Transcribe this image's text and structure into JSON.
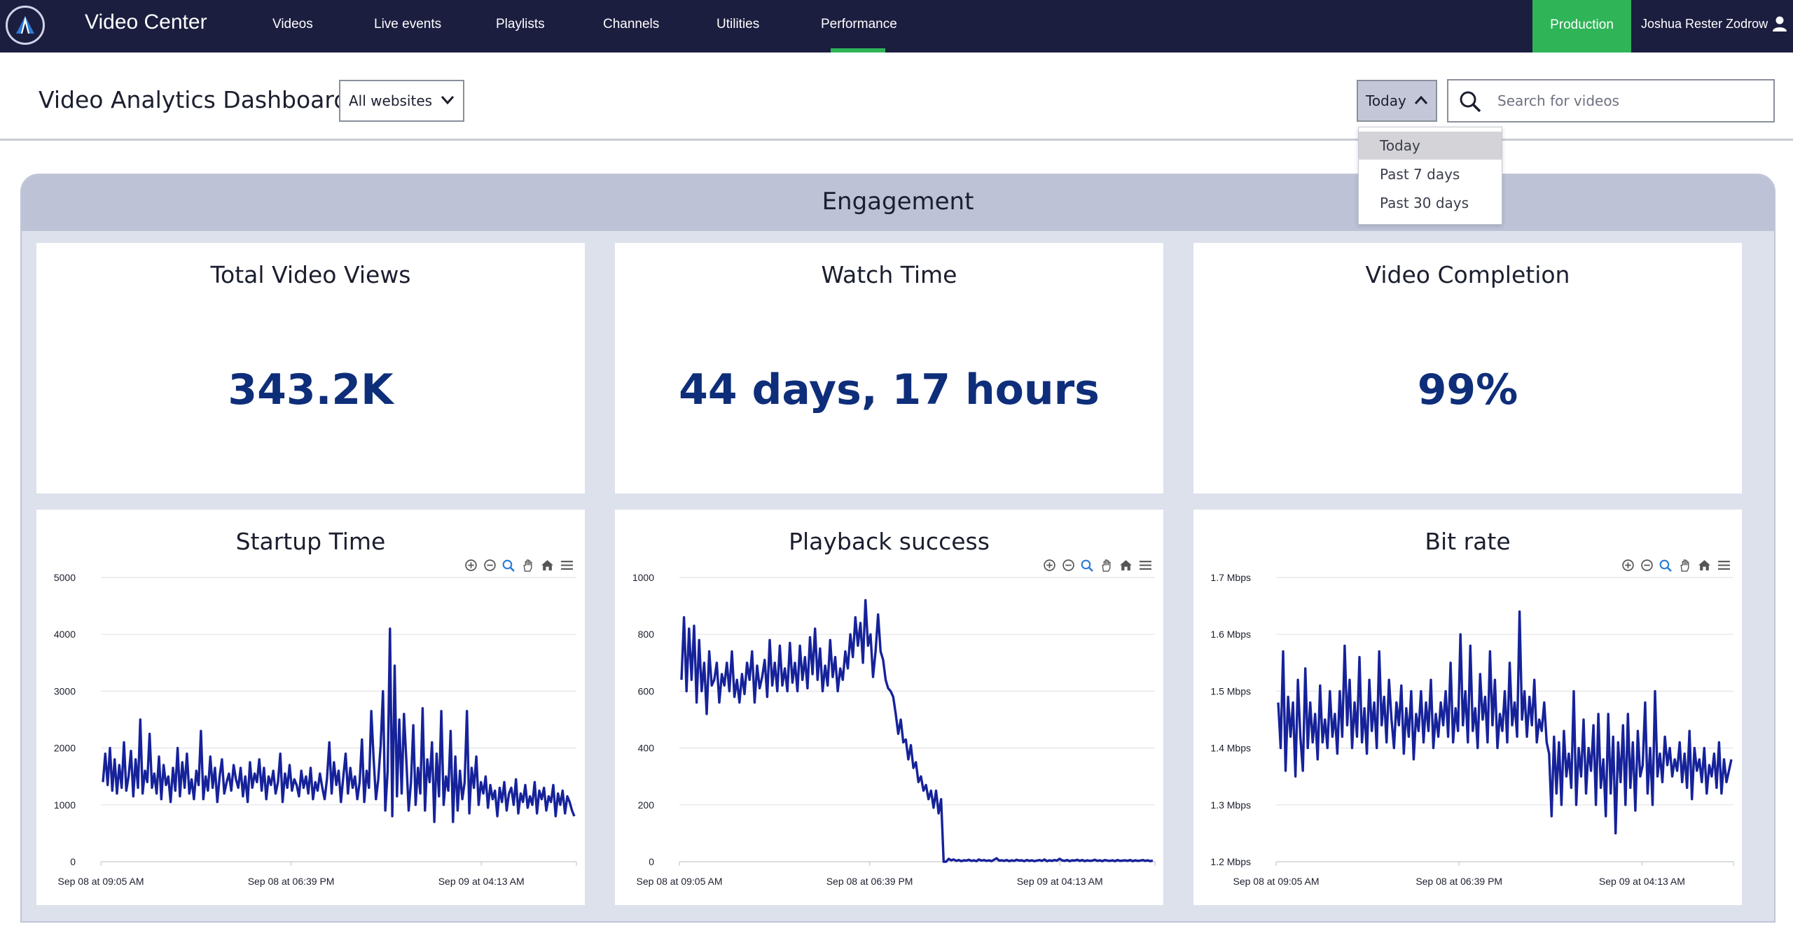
{
  "navbar": {
    "brand": "Video Center",
    "items": [
      {
        "label": "Videos"
      },
      {
        "label": "Live events"
      },
      {
        "label": "Playlists"
      },
      {
        "label": "Channels"
      },
      {
        "label": "Utilities"
      },
      {
        "label": "Performance",
        "active": true
      }
    ],
    "environment": "Production",
    "user": "Joshua Rester Zodrow",
    "colors": {
      "background": "#1b1e3f",
      "active": "#2fb457"
    }
  },
  "header": {
    "title": "Video Analytics Dashboard",
    "site_filter": "All websites",
    "range": "Today",
    "search": {
      "placeholder": "Search for videos",
      "value": ""
    }
  },
  "range_dropdown": {
    "options": [
      "Today",
      "Past 7 days",
      "Past 30 days"
    ],
    "selected": "Today"
  },
  "engagement": {
    "title": "Engagement",
    "kpis": [
      {
        "title": "Total Video Views",
        "value": "343.2K"
      },
      {
        "title": "Watch Time",
        "value": "44 days, 17 hours"
      },
      {
        "title": "Video Completion",
        "value": "99%"
      }
    ]
  },
  "chart_toolbar_icons": [
    "zoom-in-icon",
    "zoom-out-icon",
    "selection-zoom-icon",
    "pan-hand-icon",
    "home-reset-icon",
    "menu-icon"
  ],
  "chart_data": [
    {
      "type": "line",
      "title": "Startup Time",
      "y_ticks": [
        "5000",
        "4000",
        "3000",
        "2000",
        "1000",
        "0"
      ],
      "ylim": [
        0,
        5000
      ],
      "x_ticks": [
        "Sep 08 at 09:05 AM",
        "Sep 08 at 06:39 PM",
        "Sep 09 at 04:13 AM"
      ],
      "color": "#16229a",
      "series": [
        {
          "values": [
            1400,
            1900,
            1350,
            2000,
            1250,
            1800,
            1200,
            1700,
            1300,
            2100,
            1250,
            1500,
            1950,
            1150,
            1800,
            1300,
            2500,
            1200,
            1600,
            1400,
            2250,
            1300,
            1550,
            1200,
            1850,
            1100,
            1700,
            1350,
            1500,
            1050,
            1650,
            1250,
            2000,
            1150,
            1750,
            1300,
            1900,
            1200,
            1450,
            1100,
            1600,
            1350,
            2300,
            1100,
            1500,
            1250,
            1850,
            1300,
            1650,
            1050,
            1500,
            1800,
            1200,
            1400,
            1550,
            1250,
            1700,
            1450,
            1300,
            1650,
            1150,
            1500,
            1050,
            1750,
            1300,
            1550,
            1400,
            1800,
            1250,
            1650,
            1100,
            1500,
            1350,
            1600,
            1200,
            1400,
            1900,
            1050,
            1550,
            1300,
            1700,
            1250,
            1450,
            1350,
            1150,
            1600,
            1300,
            1500,
            1200,
            1650,
            1100,
            1400,
            1250,
            1550,
            1300,
            1100,
            1450,
            2100,
            1200,
            1750,
            1350,
            1600,
            1050,
            1500,
            1900,
            1200,
            1650,
            1300,
            1500,
            1100,
            1400,
            2150,
            1050,
            1600,
            1300,
            2650,
            1800,
            1100,
            1450,
            2050,
            3000,
            900,
            1600,
            4100,
            800,
            3450,
            1150,
            2500,
            1200,
            2600,
            1800,
            900,
            1400,
            2400,
            1000,
            1650,
            1200,
            2700,
            900,
            1800,
            1400,
            2100,
            700,
            1900,
            1150,
            2650,
            1000,
            1500,
            1250,
            2300,
            700,
            1850,
            900,
            1600,
            1100,
            1400,
            2650,
            850,
            1650,
            1300,
            1850,
            1000,
            1400,
            1200,
            1500,
            950,
            1350,
            1100,
            1250,
            800,
            1300,
            1050,
            1400,
            900,
            1200,
            1300,
            1000,
            1450,
            850,
            1200,
            1050,
            1350,
            950,
            1150,
            1000,
            1400,
            850,
            1250,
            1100,
            1300,
            900,
            1150,
            1050,
            1350,
            800,
            1200,
            1000,
            1250,
            850,
            1150,
            1050,
            900,
            800
          ]
        }
      ]
    },
    {
      "type": "line",
      "title": "Playback success",
      "y_ticks": [
        "1000",
        "800",
        "600",
        "400",
        "200",
        "0"
      ],
      "ylim": [
        0,
        1000
      ],
      "x_ticks": [
        "Sep 08 at 09:05 AM",
        "Sep 08 at 06:39 PM",
        "Sep 09 at 04:13 AM"
      ],
      "color": "#16229a",
      "series": [
        {
          "values": [
            640,
            860,
            600,
            820,
            640,
            830,
            560,
            780,
            600,
            700,
            520,
            740,
            620,
            640,
            700,
            560,
            660,
            620,
            700,
            600,
            740,
            580,
            640,
            560,
            660,
            590,
            700,
            640,
            740,
            560,
            690,
            610,
            650,
            710,
            580,
            780,
            620,
            700,
            600,
            760,
            620,
            680,
            600,
            770,
            630,
            700,
            600,
            760,
            640,
            720,
            610,
            790,
            660,
            820,
            640,
            750,
            600,
            690,
            620,
            780,
            650,
            720,
            600,
            680,
            640,
            740,
            680,
            800,
            720,
            860,
            760,
            840,
            700,
            920,
            760,
            800,
            650,
            740,
            870,
            740,
            710,
            640,
            610,
            600,
            580,
            520,
            450,
            500,
            420,
            430,
            360,
            410,
            330,
            350,
            280,
            300,
            250,
            270,
            220,
            250,
            190,
            250,
            170,
            220,
            0,
            0,
            10,
            5,
            8,
            3,
            6,
            2,
            5,
            4,
            7,
            3,
            5,
            2,
            8,
            4,
            6,
            3,
            5,
            2,
            7,
            12,
            4,
            5,
            3,
            6,
            2,
            5,
            3,
            7,
            4,
            5,
            2,
            6,
            3,
            5,
            2,
            4,
            6,
            3,
            8,
            2,
            5,
            3,
            6,
            4,
            10,
            5,
            3,
            6,
            2,
            5,
            4,
            7,
            3,
            6,
            2,
            5,
            3,
            4,
            7,
            3,
            5,
            2,
            6,
            4,
            3,
            5,
            2,
            6,
            3,
            4,
            5,
            3,
            6,
            2,
            5,
            3,
            4,
            6,
            3,
            5,
            2,
            4
          ]
        }
      ]
    },
    {
      "type": "line",
      "title": "Bit rate",
      "y_ticks": [
        "1.7 Mbps",
        "1.6 Mbps",
        "1.5 Mbps",
        "1.4 Mbps",
        "1.3 Mbps",
        "1.2 Mbps"
      ],
      "ylim": [
        1.2,
        1.7
      ],
      "x_ticks": [
        "Sep 08 at 09:05 AM",
        "Sep 08 at 06:39 PM",
        "Sep 09 at 04:13 AM"
      ],
      "color": "#16229a",
      "series": [
        {
          "values": [
            1.48,
            1.4,
            1.57,
            1.36,
            1.49,
            1.42,
            1.48,
            1.35,
            1.52,
            1.42,
            1.36,
            1.54,
            1.4,
            1.48,
            1.41,
            1.46,
            1.38,
            1.51,
            1.41,
            1.45,
            1.4,
            1.5,
            1.42,
            1.46,
            1.39,
            1.5,
            1.42,
            1.58,
            1.44,
            1.52,
            1.4,
            1.48,
            1.42,
            1.56,
            1.41,
            1.47,
            1.39,
            1.52,
            1.43,
            1.48,
            1.4,
            1.57,
            1.44,
            1.49,
            1.41,
            1.52,
            1.45,
            1.4,
            1.48,
            1.44,
            1.51,
            1.39,
            1.47,
            1.42,
            1.5,
            1.38,
            1.46,
            1.43,
            1.5,
            1.41,
            1.48,
            1.43,
            1.52,
            1.4,
            1.46,
            1.42,
            1.48,
            1.44,
            1.5,
            1.42,
            1.55,
            1.41,
            1.47,
            1.43,
            1.6,
            1.44,
            1.5,
            1.41,
            1.58,
            1.43,
            1.47,
            1.4,
            1.53,
            1.45,
            1.49,
            1.41,
            1.57,
            1.44,
            1.52,
            1.4,
            1.46,
            1.43,
            1.5,
            1.41,
            1.55,
            1.44,
            1.48,
            1.42,
            1.64,
            1.45,
            1.5,
            1.42,
            1.49,
            1.44,
            1.52,
            1.41,
            1.45,
            1.43,
            1.48,
            1.41,
            1.39,
            1.28,
            1.42,
            1.32,
            1.41,
            1.3,
            1.43,
            1.35,
            1.39,
            1.33,
            1.5,
            1.3,
            1.4,
            1.35,
            1.45,
            1.32,
            1.4,
            1.36,
            1.44,
            1.3,
            1.46,
            1.33,
            1.38,
            1.28,
            1.46,
            1.32,
            1.42,
            1.25,
            1.41,
            1.34,
            1.44,
            1.3,
            1.46,
            1.33,
            1.41,
            1.29,
            1.43,
            1.35,
            1.37,
            1.48,
            1.32,
            1.4,
            1.3,
            1.5,
            1.35,
            1.39,
            1.34,
            1.42,
            1.37,
            1.4,
            1.35,
            1.38,
            1.36,
            1.41,
            1.34,
            1.39,
            1.33,
            1.43,
            1.31,
            1.4,
            1.36,
            1.38,
            1.34,
            1.4,
            1.32,
            1.37,
            1.35,
            1.39,
            1.33,
            1.41,
            1.32,
            1.38,
            1.34,
            1.36,
            1.38
          ]
        }
      ]
    }
  ]
}
